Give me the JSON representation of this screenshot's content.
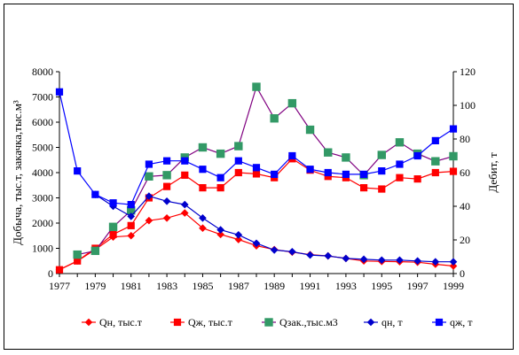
{
  "chart_data": {
    "type": "line",
    "x": [
      1977,
      1978,
      1979,
      1980,
      1981,
      1982,
      1983,
      1984,
      1985,
      1986,
      1987,
      1988,
      1989,
      1990,
      1991,
      1992,
      1993,
      1994,
      1995,
      1996,
      1997,
      1998,
      1999
    ],
    "x_ticks": [
      1977,
      1979,
      1981,
      1983,
      1985,
      1987,
      1989,
      1991,
      1993,
      1995,
      1997,
      1999
    ],
    "y_left": {
      "label": "Добыча, тыс.т, закачка,тыс.м³",
      "lim": [
        0,
        8000
      ],
      "ticks": [
        0,
        1000,
        2000,
        3000,
        4000,
        5000,
        6000,
        7000,
        8000
      ]
    },
    "y_right": {
      "label": "Дебит, т",
      "lim": [
        0,
        120
      ],
      "ticks": [
        0,
        20,
        40,
        60,
        80,
        100,
        120
      ]
    },
    "series": [
      {
        "name": "Qн, тыс.т",
        "axis": "left",
        "color": "#ff0000",
        "marker": "diamond",
        "values": [
          150,
          500,
          950,
          1450,
          1500,
          2100,
          2200,
          2400,
          1800,
          1550,
          1350,
          1100,
          950,
          850,
          750,
          700,
          600,
          500,
          480,
          470,
          450,
          370,
          300
        ]
      },
      {
        "name": "Qж, тыс.т",
        "axis": "left",
        "color": "#ff0000",
        "marker": "square",
        "values": [
          150,
          500,
          1000,
          1550,
          1900,
          3000,
          3450,
          3900,
          3400,
          3400,
          4000,
          3950,
          3800,
          4550,
          4100,
          3850,
          3800,
          3400,
          3350,
          3800,
          3750,
          4000,
          4050
        ]
      },
      {
        "name": "Qзак.,тыс.м3",
        "axis": "left",
        "color": "#800080",
        "marker": "square",
        "marker_color": "#339966",
        "values": [
          null,
          750,
          900,
          1850,
          2500,
          3850,
          3900,
          4600,
          5000,
          4750,
          5050,
          7400,
          6150,
          6750,
          5700,
          4800,
          4600,
          3900,
          4700,
          5200,
          4750,
          4450,
          4650
        ]
      },
      {
        "name": "qн, т",
        "axis": "right",
        "color": "#0000cc",
        "marker": "diamond",
        "values": [
          null,
          null,
          47,
          40,
          34,
          46,
          43,
          41,
          33,
          26,
          23,
          18,
          14,
          13,
          11,
          10.5,
          9,
          8.5,
          8,
          8,
          7.5,
          7,
          7
        ]
      },
      {
        "name": "qж, т",
        "axis": "right",
        "color": "#0000ff",
        "marker": "square",
        "values": [
          108,
          61,
          47,
          42,
          41,
          65,
          67,
          67,
          62,
          57,
          67,
          63,
          59,
          70,
          62,
          60,
          59,
          59,
          61,
          65,
          70,
          79,
          86
        ]
      }
    ],
    "grid": false,
    "legend_position": "bottom"
  }
}
